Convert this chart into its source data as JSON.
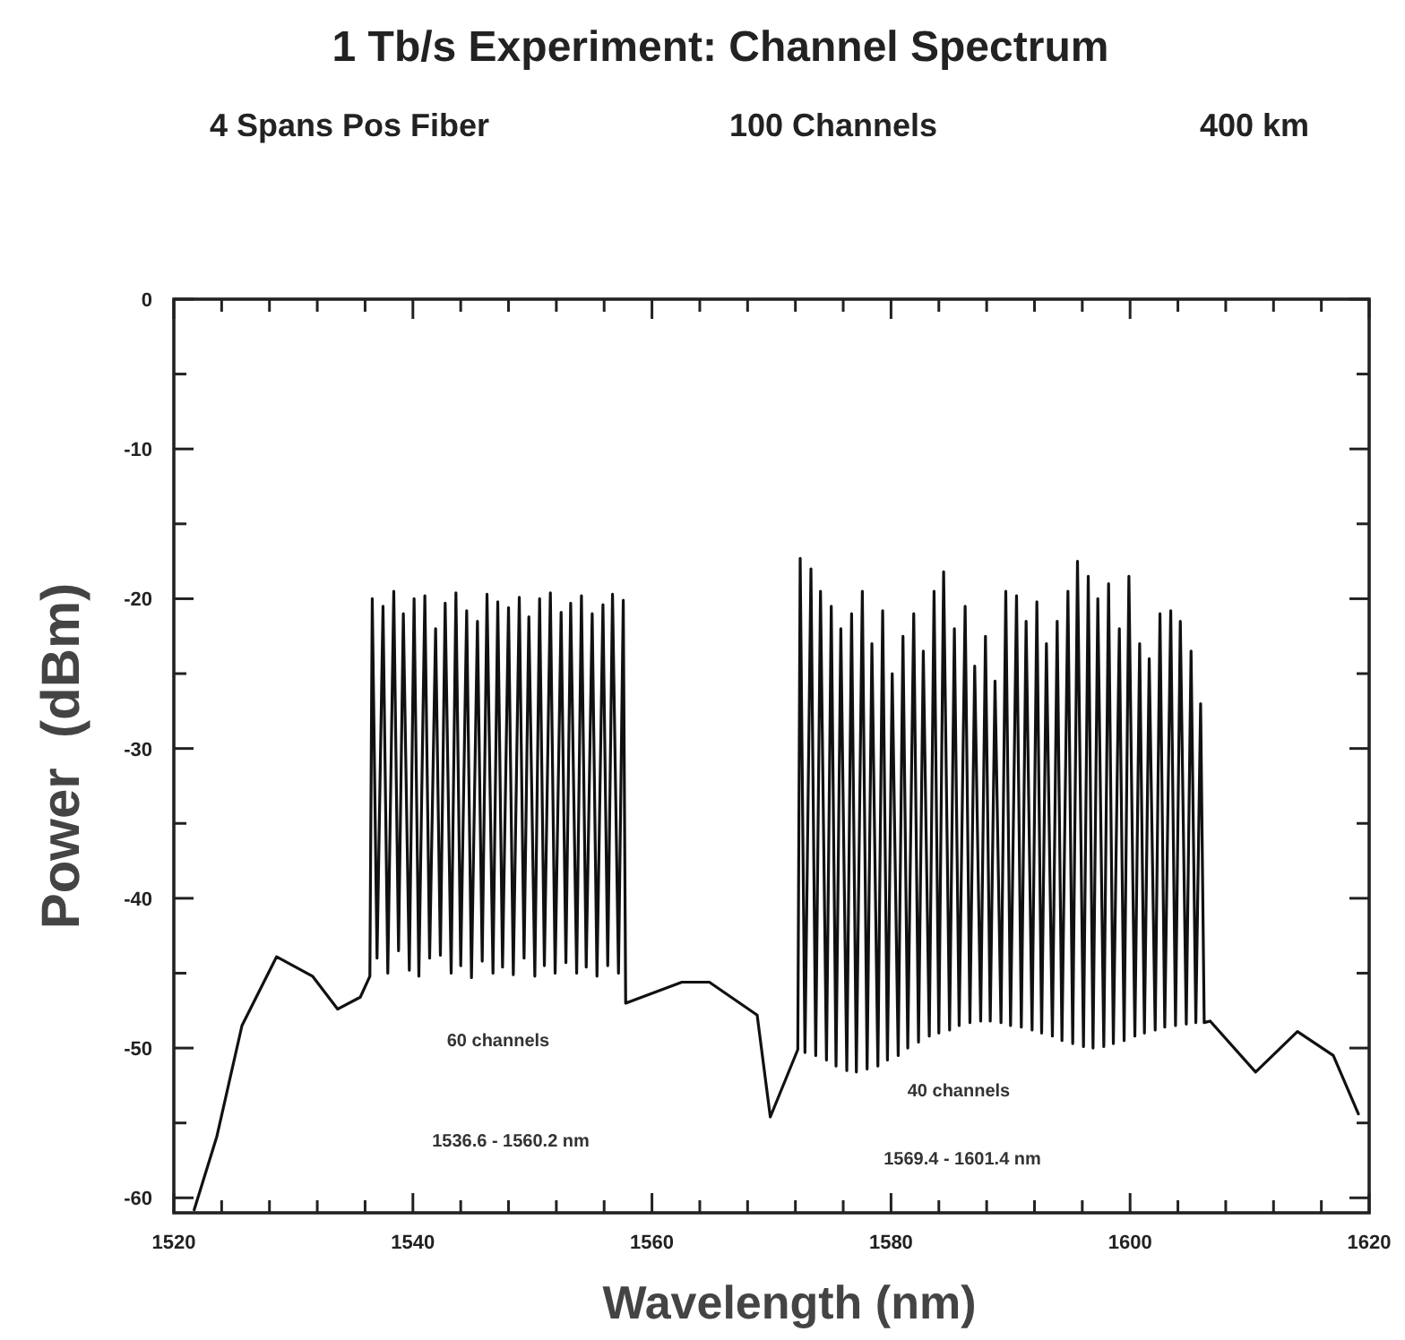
{
  "chart_data": {
    "type": "line",
    "title": "1 Tb/s Experiment: Channel Spectrum",
    "xlabel": "Wavelength (nm)",
    "ylabel": "Power  (dBm)",
    "xlim": [
      1520,
      1620
    ],
    "ylim": [
      -61,
      0
    ],
    "line_style": "solid",
    "grid": false,
    "xticks": [
      1520,
      {
        "value": 1524,
        "label": null
      },
      {
        "value": 1528,
        "label": null
      },
      {
        "value": 1532,
        "label": null
      },
      {
        "value": 1536,
        "label": null
      },
      1540,
      {
        "value": 1544,
        "label": null
      },
      {
        "value": 1548,
        "label": null
      },
      {
        "value": 1552,
        "label": null
      },
      {
        "value": 1556,
        "label": null
      },
      1560,
      {
        "value": 1564,
        "label": null
      },
      {
        "value": 1568,
        "label": null
      },
      {
        "value": 1572,
        "label": null
      },
      {
        "value": 1576,
        "label": null
      },
      1580,
      {
        "value": 1584,
        "label": null
      },
      {
        "value": 1588,
        "label": null
      },
      {
        "value": 1592,
        "label": null
      },
      {
        "value": 1596,
        "label": null
      },
      1600,
      {
        "value": 1604,
        "label": null
      },
      {
        "value": 1608,
        "label": null
      },
      {
        "value": 1612,
        "label": null
      },
      {
        "value": 1616,
        "label": null
      },
      1620
    ],
    "yticks": [
      0,
      {
        "value": -5,
        "label": null
      },
      -10,
      {
        "value": -15,
        "label": null
      },
      -20,
      {
        "value": -25,
        "label": null
      },
      -30,
      {
        "value": -35,
        "label": null
      },
      -40,
      {
        "value": -45,
        "label": null
      },
      -50,
      {
        "value": -55,
        "label": null
      },
      -60
    ],
    "annotations": [
      "4 Spans Pos Fiber",
      "100 Channels",
      "400 km",
      "60 channels",
      "1536.6 - 1560.2 nm",
      "40 channels",
      "1569.4 - 1601.4 nm"
    ],
    "series": [
      {
        "color": "#111111",
        "x": [
          1521.7,
          1523.6,
          1525.7,
          1528.6,
          1531.6,
          1533.7,
          1535.6,
          1536.4,
          1536.6,
          1537.0,
          1537.5,
          1537.9,
          1538.4,
          1538.8,
          1539.2,
          1539.7,
          1540.1,
          1540.5,
          1541.0,
          1541.4,
          1541.9,
          1542.3,
          1542.7,
          1543.2,
          1543.6,
          1544.0,
          1544.5,
          1544.9,
          1545.4,
          1545.8,
          1546.2,
          1546.7,
          1547.1,
          1547.5,
          1548.0,
          1548.4,
          1548.9,
          1549.3,
          1549.7,
          1550.2,
          1550.6,
          1551.0,
          1551.5,
          1551.9,
          1552.4,
          1552.8,
          1553.2,
          1553.7,
          1554.1,
          1554.5,
          1555.0,
          1555.4,
          1555.9,
          1556.3,
          1556.7,
          1557.2,
          1557.6,
          1557.8,
          1562.5,
          1564.8,
          1568.8,
          1569.9,
          1572.2,
          1572.4,
          1572.8,
          1573.3,
          1573.7,
          1574.1,
          1574.6,
          1575.0,
          1575.4,
          1575.8,
          1576.3,
          1576.7,
          1577.1,
          1577.6,
          1578.0,
          1578.4,
          1578.9,
          1579.3,
          1579.7,
          1580.1,
          1580.6,
          1581.0,
          1581.4,
          1581.9,
          1582.3,
          1582.7,
          1583.2,
          1583.6,
          1584.0,
          1584.4,
          1584.9,
          1585.3,
          1585.7,
          1586.2,
          1586.6,
          1587.0,
          1587.5,
          1587.9,
          1588.3,
          1588.7,
          1589.2,
          1589.6,
          1590.0,
          1590.5,
          1590.9,
          1591.3,
          1591.8,
          1592.2,
          1592.6,
          1593.0,
          1593.5,
          1593.9,
          1594.3,
          1594.8,
          1595.2,
          1595.6,
          1596.1,
          1596.5,
          1596.9,
          1597.3,
          1597.8,
          1598.2,
          1598.6,
          1599.1,
          1599.5,
          1599.9,
          1600.4,
          1600.8,
          1601.2,
          1601.6,
          1602.1,
          1602.5,
          1602.9,
          1603.4,
          1603.8,
          1604.2,
          1604.7,
          1605.1,
          1605.5,
          1605.9,
          1606.2,
          1606.7,
          1610.5,
          1614.0,
          1617.0,
          1619.1
        ],
        "values": [
          -60.8,
          -55.9,
          -48.5,
          -43.9,
          -45.2,
          -47.4,
          -46.6,
          -45.2,
          -20,
          -44,
          -20.5,
          -45,
          -19.5,
          -43.5,
          -21,
          -44.8,
          -20,
          -45.2,
          -19.8,
          -44,
          -22,
          -43.8,
          -20.3,
          -45,
          -19.6,
          -44.5,
          -20.8,
          -45.3,
          -21.5,
          -44.2,
          -19.7,
          -45,
          -20.2,
          -44.6,
          -20.6,
          -45.1,
          -19.9,
          -44,
          -21.2,
          -45.2,
          -20,
          -44.5,
          -19.6,
          -45,
          -20.9,
          -44.3,
          -20.3,
          -45,
          -19.8,
          -44.6,
          -21,
          -45.2,
          -20.4,
          -44.5,
          -19.7,
          -45,
          -20.1,
          -47,
          -45.6,
          -45.6,
          -47.8,
          -54.6,
          -50.1,
          -17.3,
          -50.3,
          -18,
          -50.5,
          -19.5,
          -50.8,
          -20.5,
          -51.2,
          -22,
          -51.5,
          -21,
          -51.6,
          -19.5,
          -51.4,
          -23,
          -51.2,
          -20.8,
          -50.8,
          -25,
          -50.5,
          -22.5,
          -50,
          -21,
          -49.6,
          -23.5,
          -49.2,
          -19.5,
          -49,
          -18.2,
          -48.8,
          -22,
          -48.5,
          -20.5,
          -48.3,
          -24.5,
          -48.2,
          -22.5,
          -48.2,
          -25.5,
          -48.3,
          -19.5,
          -48.5,
          -19.8,
          -48.6,
          -21.5,
          -48.8,
          -20.2,
          -49,
          -23,
          -49.2,
          -21.5,
          -49.5,
          -19.5,
          -49.7,
          -17.5,
          -49.9,
          -18.5,
          -50,
          -20,
          -49.9,
          -19,
          -49.7,
          -22,
          -49.5,
          -18.5,
          -49.2,
          -23,
          -49,
          -24,
          -48.8,
          -21,
          -48.6,
          -20.8,
          -48.5,
          -21.5,
          -48.4,
          -23.5,
          -48.3,
          -27,
          -48.3,
          -48.2,
          -51.6,
          -48.9,
          -50.5,
          -54.4
        ]
      }
    ]
  }
}
